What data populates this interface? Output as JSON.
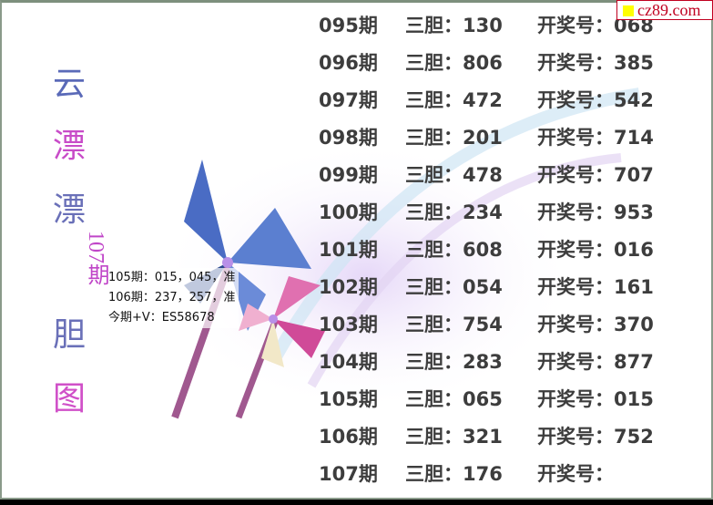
{
  "side_title": {
    "chars": [
      "云",
      "漂",
      "漂",
      "胆",
      "图"
    ],
    "period": "107期"
  },
  "note": {
    "lines": [
      "105期：015，045，准",
      "106期：237，257，准",
      "今期+V：ES58678"
    ]
  },
  "labels": {
    "sandan": "三胆：",
    "kaijiang": "开奖号："
  },
  "rows": [
    {
      "period": "095期",
      "sandan": "130",
      "result": "068"
    },
    {
      "period": "096期",
      "sandan": "806",
      "result": "385"
    },
    {
      "period": "097期",
      "sandan": "472",
      "result": "542"
    },
    {
      "period": "098期",
      "sandan": "201",
      "result": "714"
    },
    {
      "period": "099期",
      "sandan": "478",
      "result": "707"
    },
    {
      "period": "100期",
      "sandan": "234",
      "result": "953"
    },
    {
      "period": "101期",
      "sandan": "608",
      "result": "016"
    },
    {
      "period": "102期",
      "sandan": "054",
      "result": "161"
    },
    {
      "period": "103期",
      "sandan": "754",
      "result": "370"
    },
    {
      "period": "104期",
      "sandan": "283",
      "result": "877"
    },
    {
      "period": "105期",
      "sandan": "065",
      "result": "015"
    },
    {
      "period": "106期",
      "sandan": "321",
      "result": "752"
    },
    {
      "period": "107期",
      "sandan": "176",
      "result": ""
    }
  ],
  "watermark": "cz89.com",
  "colors": {
    "text": "#3d3d3d",
    "accent_pink": "#c046c8",
    "accent_blue": "#5a6ab8",
    "watermark": "#c00020"
  }
}
